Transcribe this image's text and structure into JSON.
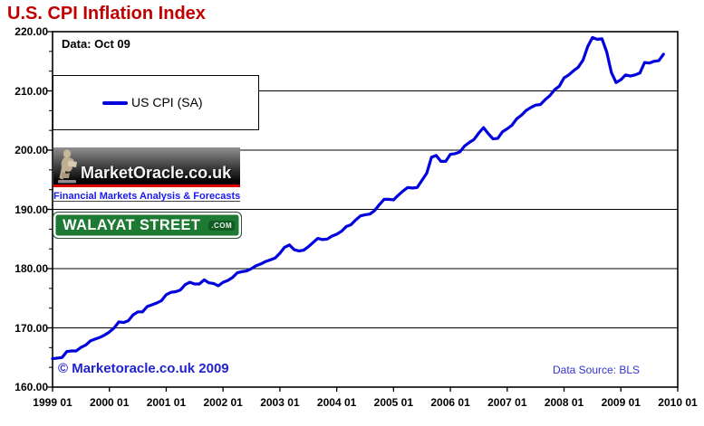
{
  "page": {
    "title": "U.S. CPI Inflation Index",
    "data_note": "Data: Oct 09",
    "copyright": "© Marketoracle.co.uk  2009",
    "data_source": "Data Source: BLS"
  },
  "legend": {
    "label": "US CPI (SA)"
  },
  "logos": {
    "marketoracle": {
      "name": "MarketOracle.co.uk",
      "tagline": "Financial Markets Analysis & Forecasts"
    },
    "walayat": {
      "name": "WALAYAT STREET",
      "suffix": ".COM"
    }
  },
  "colors": {
    "title_red": "#c00000",
    "line_blue": "#0000dd",
    "copyright_blue": "#2222cc",
    "data_source_blue": "#3333cc",
    "tagline_blue": "#1a1aee",
    "walayat_green": "#1e7a33",
    "logo_red_stripe": "#dd0000"
  },
  "chart_data": {
    "type": "line",
    "title": "U.S. CPI Inflation Index",
    "xlabel": "",
    "ylabel": "",
    "ylim": [
      160,
      220
    ],
    "y_tick_step": 10,
    "grid": "horizontal",
    "legend_position": "top-left",
    "y_ticks": [
      "220.00",
      "210.00",
      "200.00",
      "190.00",
      "180.00",
      "170.00",
      "160.00"
    ],
    "x_ticks": [
      "1999 01",
      "2000 01",
      "2001 01",
      "2002 01",
      "2003 01",
      "2004 01",
      "2005 01",
      "2006 01",
      "2007 01",
      "2008 01",
      "2009 01",
      "2010 01"
    ],
    "series": [
      {
        "name": "US CPI (SA)",
        "color": "#0000dd",
        "start": "1999-01",
        "frequency": "monthly",
        "values": [
          164.8,
          164.9,
          165.0,
          166.0,
          166.1,
          166.1,
          166.7,
          167.1,
          167.8,
          168.1,
          168.4,
          168.8,
          169.3,
          170.0,
          171.0,
          170.9,
          171.2,
          172.2,
          172.7,
          172.7,
          173.6,
          173.9,
          174.2,
          174.6,
          175.6,
          176.0,
          176.1,
          176.4,
          177.3,
          177.7,
          177.4,
          177.4,
          178.1,
          177.6,
          177.5,
          177.1,
          177.7,
          178.0,
          178.5,
          179.3,
          179.5,
          179.6,
          180.0,
          180.5,
          180.8,
          181.2,
          181.5,
          181.8,
          182.6,
          183.6,
          184.0,
          183.2,
          183.0,
          183.1,
          183.7,
          184.4,
          185.1,
          184.9,
          185.0,
          185.5,
          185.8,
          186.3,
          187.1,
          187.4,
          188.2,
          188.9,
          189.1,
          189.2,
          189.8,
          190.8,
          191.7,
          191.7,
          191.6,
          192.4,
          193.1,
          193.7,
          193.6,
          193.7,
          194.9,
          196.1,
          198.8,
          199.1,
          198.1,
          198.1,
          199.3,
          199.4,
          199.7,
          200.7,
          201.3,
          201.8,
          202.9,
          203.8,
          202.8,
          201.9,
          202.0,
          203.1,
          203.6,
          204.2,
          205.3,
          205.9,
          206.7,
          207.2,
          207.6,
          207.7,
          208.5,
          209.2,
          210.2,
          210.8,
          212.2,
          212.7,
          213.4,
          214.0,
          215.2,
          217.5,
          219.0,
          218.7,
          218.8,
          216.6,
          213.1,
          211.4,
          211.9,
          212.7,
          212.5,
          212.7,
          213.0,
          214.8,
          214.7,
          215.0,
          215.1,
          216.2
        ]
      }
    ]
  }
}
